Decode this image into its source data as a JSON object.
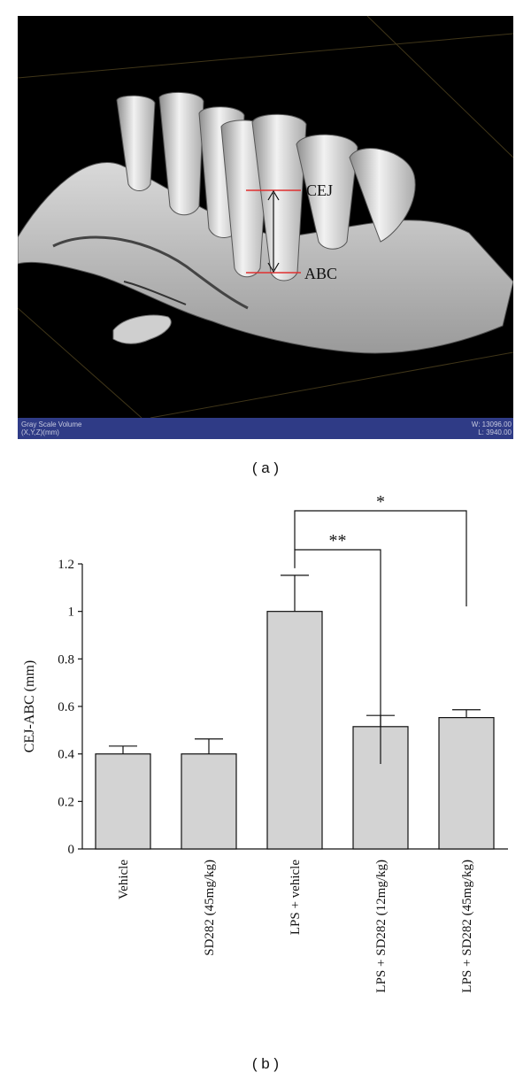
{
  "panel_a": {
    "annotations": {
      "cej": "CEJ",
      "abc": "ABC"
    },
    "status": {
      "left_line1": "Gray Scale Volume",
      "left_line2": "(X,Y,Z)(mm)",
      "right_line1": "W: 13096.00",
      "right_line2": "L: 3940.00"
    },
    "label": "( a )",
    "colors": {
      "background": "#000000",
      "status_bar": "#2f3b86",
      "marker": "#e03030"
    }
  },
  "panel_b": {
    "label": "( b )"
  },
  "chart_data": {
    "type": "bar",
    "categories": [
      "Vehicle",
      "SD282 (45mg/kg)",
      "LPS + vehicle",
      "LPS + SD282 (12mg/kg)",
      "LPS + SD282 (45mg/kg)"
    ],
    "values": [
      0.4,
      0.4,
      1.0,
      0.515,
      0.553
    ],
    "error": [
      0.033,
      0.063,
      0.152,
      0.047,
      0.033
    ],
    "title": "",
    "xlabel": "",
    "ylabel": "CEJ-ABC (mm)",
    "ylim": [
      0,
      1.2
    ],
    "yticks": [
      0,
      0.2,
      0.4,
      0.6,
      0.8,
      1,
      1.2
    ],
    "ytick_labels": [
      "0",
      "0.2",
      "0.4",
      "0.6",
      "0.8",
      "1",
      "1.2"
    ],
    "grid": false,
    "bar_color": "#d3d3d3",
    "significance": [
      {
        "from": 2,
        "to": 3,
        "label": "**"
      },
      {
        "from": 2,
        "to": 4,
        "label": "*"
      }
    ]
  }
}
